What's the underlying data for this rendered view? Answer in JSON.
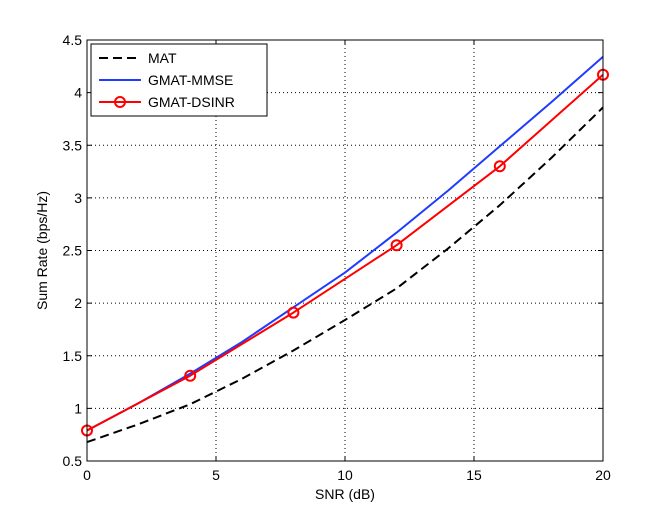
{
  "chart_data": {
    "type": "line",
    "title": "",
    "xlabel": "SNR (dB)",
    "ylabel": "Sum Rate (bps/Hz)",
    "xlim": [
      0,
      20
    ],
    "ylim": [
      0.5,
      4.5
    ],
    "xticks": [
      0,
      5,
      10,
      15,
      20
    ],
    "yticks": [
      0.5,
      1,
      1.5,
      2,
      2.5,
      3,
      3.5,
      4,
      4.5
    ],
    "xtick_labels": [
      "0",
      "5",
      "10",
      "15",
      "20"
    ],
    "ytick_labels": [
      "0.5",
      "1",
      "1.5",
      "2",
      "2.5",
      "3",
      "3.5",
      "4",
      "4.5"
    ],
    "grid": true,
    "legend_position": "top-left",
    "series": [
      {
        "name": "MAT",
        "color": "#000000",
        "style": "dashed",
        "marker": "none",
        "x": [
          0,
          2,
          4,
          6,
          8,
          10,
          12,
          14,
          16,
          18,
          20
        ],
        "values": [
          0.68,
          0.85,
          1.04,
          1.28,
          1.55,
          1.84,
          2.14,
          2.52,
          2.93,
          3.38,
          3.86
        ]
      },
      {
        "name": "GMAT-MMSE",
        "color": "#1f3cff",
        "style": "solid",
        "marker": "none",
        "x": [
          0,
          2,
          4,
          6,
          8,
          10,
          12,
          14,
          16,
          18,
          20
        ],
        "values": [
          0.79,
          1.05,
          1.33,
          1.63,
          1.96,
          2.29,
          2.67,
          3.07,
          3.49,
          3.91,
          4.34
        ]
      },
      {
        "name": "GMAT-DSINR",
        "color": "#ff0000",
        "style": "solid",
        "marker": "circle",
        "x": [
          0,
          4,
          8,
          12,
          16,
          20
        ],
        "values": [
          0.79,
          1.31,
          1.91,
          2.55,
          3.3,
          4.17
        ]
      }
    ]
  }
}
